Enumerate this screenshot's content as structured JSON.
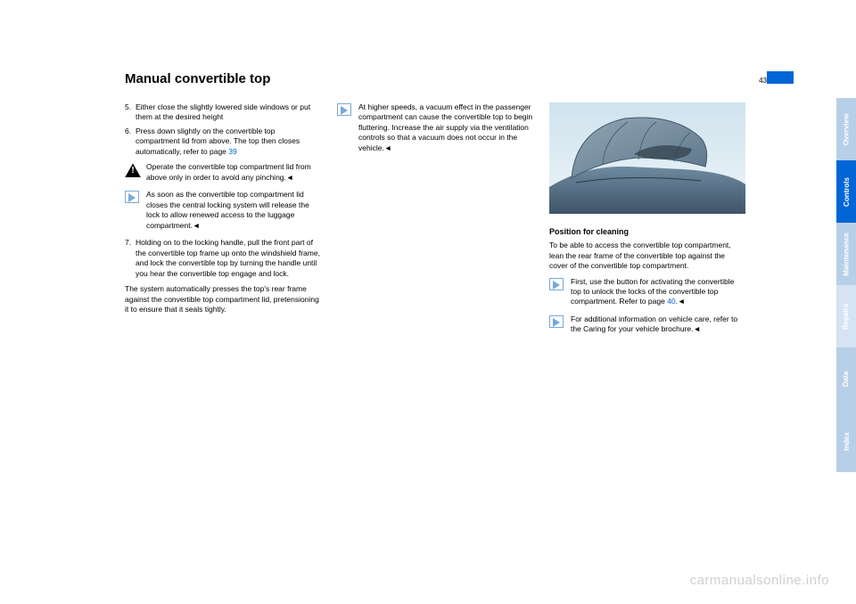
{
  "page_number": "43",
  "title": "Manual convertible top",
  "col1": {
    "steps_a": [
      {
        "n": "5.",
        "t": "Either close the slightly lowered side windows or put them at the desired height"
      },
      {
        "n": "6.",
        "t": "Press down slightly on the convertible top compartment lid from above. The top then closes automatically, refer to page "
      }
    ],
    "step6_link": "39",
    "warn": "Operate the convertible top compartment lid from above only in order to avoid any pinching.",
    "note1": "As soon as the convertible top compartment lid closes the central locking system will release the lock to allow renewed access to the luggage compartment.",
    "steps_b": [
      {
        "n": "7.",
        "t": "Holding on to the locking handle, pull the front part of the convertible top frame up onto the windshield frame, and lock the convertible top by turning the handle until you hear the convertible top engage and lock."
      }
    ],
    "para": "The system automatically presses the top's rear frame against the convertible top compartment lid, pretensioning it to ensure that it seals tightly."
  },
  "col2": {
    "note": "At higher speeds, a vacuum effect in the passenger compartment can cause the convertible top to begin fluttering. Increase the air supply via the ventilation controls so that a vacuum does not occur in the vehicle."
  },
  "col3": {
    "fig_id": "MA303M50MA",
    "subhead": "Position for cleaning",
    "para": "To be able to access the convertible top compartment, lean the rear frame of the convertible top against the cover of the convertible top compartment.",
    "note1_a": "First, use the button for activating the convertible top to unlock the locks of the convertible top compartment. Refer to page ",
    "note1_link": "40",
    "note1_b": ".",
    "note2": "For additional information on vehicle care, refer to the Caring for your vehicle brochure."
  },
  "tabs": [
    {
      "label": "Overview",
      "bg": "#b8cfe8",
      "fg": "#ffffff"
    },
    {
      "label": "Controls",
      "bg": "#0066d6",
      "fg": "#ffffff"
    },
    {
      "label": "Maintenance",
      "bg": "#b8cfe8",
      "fg": "#ffffff"
    },
    {
      "label": "Repairs",
      "bg": "#d5e3f3",
      "fg": "#ffffff"
    },
    {
      "label": "Data",
      "bg": "#b8cfe8",
      "fg": "#ffffff"
    },
    {
      "label": "Index",
      "bg": "#b8cfe8",
      "fg": "#ffffff"
    }
  ],
  "watermark": "carmanualsonline.info",
  "endmark": "◄"
}
